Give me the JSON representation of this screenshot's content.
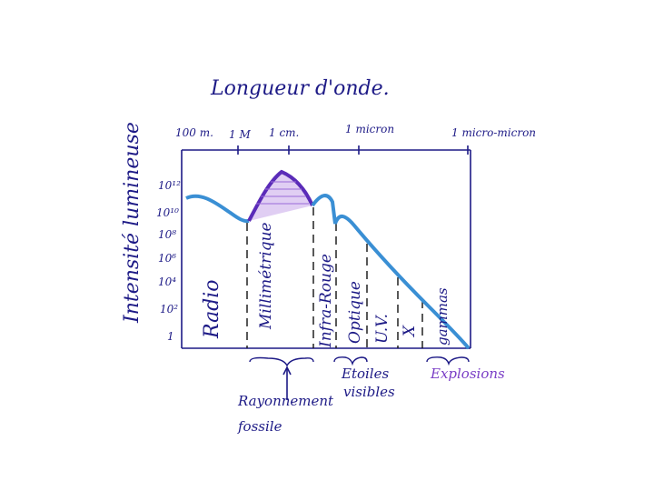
{
  "title": "Longueur d'onde.",
  "y_axis_label": "Intensité lumineuse",
  "top_labels": [
    "100 m.",
    "1 M",
    "1 cm.",
    "1 micron",
    "1 micro-micron"
  ],
  "left_labels": [
    "10¹²",
    "10¹⁰",
    "10⁸",
    "10⁶",
    "10⁴",
    "10²",
    "1"
  ],
  "bands": [
    "Radio",
    "Millimétrique",
    "Infra-Rouge",
    "Optique",
    "U.V.",
    "X",
    "gammas"
  ],
  "annotations": [
    {
      "line1": "Rayonnement",
      "line2": "fossile"
    },
    {
      "line1": "Etoiles",
      "line2": "visibles"
    },
    {
      "line1": "Explosions"
    }
  ]
}
